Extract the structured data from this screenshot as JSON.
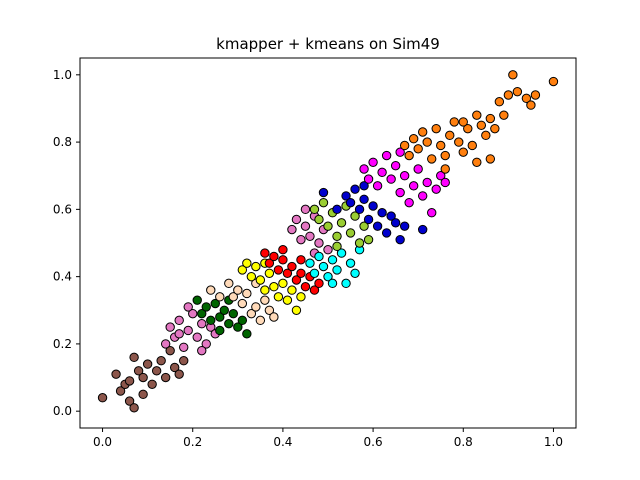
{
  "chart_data": {
    "type": "scatter",
    "title": "kmapper + kmeans on Sim49",
    "xlabel": "",
    "ylabel": "",
    "xlim": [
      -0.05,
      1.05
    ],
    "ylim": [
      -0.05,
      1.05
    ],
    "xticks": [
      0.0,
      0.2,
      0.4,
      0.6,
      0.8,
      1.0
    ],
    "yticks": [
      0.0,
      0.2,
      0.4,
      0.6,
      0.8,
      1.0
    ],
    "xtick_labels": [
      "0.0",
      "0.2",
      "0.4",
      "0.6",
      "0.8",
      "1.0"
    ],
    "ytick_labels": [
      "0.0",
      "0.2",
      "0.4",
      "0.6",
      "0.8",
      "1.0"
    ],
    "grid": false,
    "legend": "none",
    "marker_edge_color": "#000000",
    "series": [
      {
        "color": "#8c564b",
        "points": [
          [
            0.0,
            0.04
          ],
          [
            0.03,
            0.11
          ],
          [
            0.04,
            0.06
          ],
          [
            0.05,
            0.08
          ],
          [
            0.06,
            0.03
          ],
          [
            0.07,
            0.01
          ],
          [
            0.07,
            0.16
          ],
          [
            0.08,
            0.12
          ],
          [
            0.09,
            0.1
          ],
          [
            0.1,
            0.14
          ],
          [
            0.11,
            0.08
          ],
          [
            0.12,
            0.12
          ],
          [
            0.13,
            0.15
          ],
          [
            0.14,
            0.1
          ],
          [
            0.15,
            0.18
          ],
          [
            0.16,
            0.13
          ],
          [
            0.17,
            0.11
          ],
          [
            0.18,
            0.15
          ],
          [
            0.06,
            0.09
          ],
          [
            0.09,
            0.05
          ]
        ]
      },
      {
        "color": "#e377c2",
        "points": [
          [
            0.14,
            0.2
          ],
          [
            0.15,
            0.25
          ],
          [
            0.16,
            0.22
          ],
          [
            0.17,
            0.27
          ],
          [
            0.18,
            0.19
          ],
          [
            0.19,
            0.24
          ],
          [
            0.2,
            0.29
          ],
          [
            0.21,
            0.22
          ],
          [
            0.22,
            0.26
          ],
          [
            0.23,
            0.2
          ],
          [
            0.24,
            0.25
          ],
          [
            0.25,
            0.23
          ],
          [
            0.19,
            0.31
          ],
          [
            0.17,
            0.23
          ],
          [
            0.22,
            0.18
          ]
        ]
      },
      {
        "color": "#006400",
        "points": [
          [
            0.21,
            0.33
          ],
          [
            0.22,
            0.29
          ],
          [
            0.23,
            0.31
          ],
          [
            0.24,
            0.27
          ],
          [
            0.25,
            0.32
          ],
          [
            0.26,
            0.28
          ],
          [
            0.27,
            0.3
          ],
          [
            0.28,
            0.26
          ],
          [
            0.29,
            0.29
          ],
          [
            0.3,
            0.25
          ],
          [
            0.31,
            0.27
          ],
          [
            0.32,
            0.23
          ],
          [
            0.26,
            0.24
          ],
          [
            0.28,
            0.33
          ]
        ]
      },
      {
        "color": "#ffdab9",
        "points": [
          [
            0.24,
            0.36
          ],
          [
            0.26,
            0.34
          ],
          [
            0.28,
            0.38
          ],
          [
            0.29,
            0.34
          ],
          [
            0.3,
            0.36
          ],
          [
            0.31,
            0.32
          ],
          [
            0.32,
            0.35
          ],
          [
            0.33,
            0.29
          ],
          [
            0.34,
            0.31
          ],
          [
            0.35,
            0.27
          ],
          [
            0.36,
            0.33
          ],
          [
            0.37,
            0.3
          ],
          [
            0.38,
            0.28
          ],
          [
            0.34,
            0.38
          ]
        ]
      },
      {
        "color": "#ffff00",
        "points": [
          [
            0.31,
            0.42
          ],
          [
            0.32,
            0.44
          ],
          [
            0.33,
            0.4
          ],
          [
            0.34,
            0.43
          ],
          [
            0.35,
            0.39
          ],
          [
            0.36,
            0.36
          ],
          [
            0.37,
            0.41
          ],
          [
            0.38,
            0.37
          ],
          [
            0.39,
            0.34
          ],
          [
            0.4,
            0.38
          ],
          [
            0.41,
            0.33
          ],
          [
            0.42,
            0.36
          ],
          [
            0.43,
            0.3
          ],
          [
            0.44,
            0.34
          ],
          [
            0.36,
            0.44
          ]
        ]
      },
      {
        "color": "#ff0000",
        "points": [
          [
            0.36,
            0.47
          ],
          [
            0.37,
            0.44
          ],
          [
            0.38,
            0.46
          ],
          [
            0.39,
            0.42
          ],
          [
            0.4,
            0.45
          ],
          [
            0.41,
            0.41
          ],
          [
            0.42,
            0.43
          ],
          [
            0.43,
            0.39
          ],
          [
            0.44,
            0.41
          ],
          [
            0.45,
            0.37
          ],
          [
            0.46,
            0.4
          ],
          [
            0.47,
            0.36
          ],
          [
            0.48,
            0.38
          ],
          [
            0.4,
            0.48
          ],
          [
            0.44,
            0.45
          ]
        ]
      },
      {
        "color": "#e377c2",
        "points": [
          [
            0.42,
            0.54
          ],
          [
            0.43,
            0.57
          ],
          [
            0.44,
            0.51
          ],
          [
            0.45,
            0.55
          ],
          [
            0.46,
            0.52
          ],
          [
            0.47,
            0.58
          ],
          [
            0.48,
            0.5
          ],
          [
            0.49,
            0.54
          ],
          [
            0.5,
            0.48
          ],
          [
            0.45,
            0.6
          ],
          [
            0.47,
            0.47
          ]
        ]
      },
      {
        "color": "#00ffff",
        "points": [
          [
            0.46,
            0.44
          ],
          [
            0.47,
            0.41
          ],
          [
            0.48,
            0.46
          ],
          [
            0.49,
            0.43
          ],
          [
            0.5,
            0.4
          ],
          [
            0.51,
            0.45
          ],
          [
            0.52,
            0.42
          ],
          [
            0.53,
            0.47
          ],
          [
            0.54,
            0.38
          ],
          [
            0.55,
            0.44
          ],
          [
            0.56,
            0.41
          ],
          [
            0.57,
            0.48
          ],
          [
            0.51,
            0.38
          ]
        ]
      },
      {
        "color": "#9acd32",
        "points": [
          [
            0.47,
            0.6
          ],
          [
            0.48,
            0.57
          ],
          [
            0.49,
            0.62
          ],
          [
            0.5,
            0.55
          ],
          [
            0.51,
            0.59
          ],
          [
            0.52,
            0.52
          ],
          [
            0.53,
            0.56
          ],
          [
            0.54,
            0.61
          ],
          [
            0.55,
            0.53
          ],
          [
            0.56,
            0.58
          ],
          [
            0.57,
            0.5
          ],
          [
            0.58,
            0.55
          ],
          [
            0.59,
            0.51
          ],
          [
            0.52,
            0.49
          ]
        ]
      },
      {
        "color": "#0000cd",
        "points": [
          [
            0.49,
            0.65
          ],
          [
            0.52,
            0.6
          ],
          [
            0.54,
            0.64
          ],
          [
            0.55,
            0.62
          ],
          [
            0.56,
            0.66
          ],
          [
            0.57,
            0.6
          ],
          [
            0.58,
            0.63
          ],
          [
            0.59,
            0.57
          ],
          [
            0.6,
            0.61
          ],
          [
            0.61,
            0.55
          ],
          [
            0.62,
            0.59
          ],
          [
            0.63,
            0.53
          ],
          [
            0.64,
            0.58
          ],
          [
            0.65,
            0.56
          ],
          [
            0.66,
            0.51
          ],
          [
            0.67,
            0.55
          ],
          [
            0.71,
            0.54
          ],
          [
            0.58,
            0.67
          ]
        ]
      },
      {
        "color": "#ff00ff",
        "points": [
          [
            0.58,
            0.72
          ],
          [
            0.59,
            0.69
          ],
          [
            0.6,
            0.74
          ],
          [
            0.61,
            0.67
          ],
          [
            0.62,
            0.71
          ],
          [
            0.63,
            0.76
          ],
          [
            0.64,
            0.69
          ],
          [
            0.65,
            0.73
          ],
          [
            0.66,
            0.65
          ],
          [
            0.67,
            0.7
          ],
          [
            0.68,
            0.62
          ],
          [
            0.69,
            0.67
          ],
          [
            0.7,
            0.72
          ],
          [
            0.71,
            0.64
          ],
          [
            0.72,
            0.68
          ],
          [
            0.73,
            0.59
          ],
          [
            0.74,
            0.66
          ],
          [
            0.75,
            0.7
          ],
          [
            0.76,
            0.68
          ],
          [
            0.66,
            0.77
          ]
        ]
      },
      {
        "color": "#ff7f0e",
        "points": [
          [
            0.67,
            0.79
          ],
          [
            0.68,
            0.76
          ],
          [
            0.69,
            0.81
          ],
          [
            0.7,
            0.78
          ],
          [
            0.71,
            0.83
          ],
          [
            0.72,
            0.8
          ],
          [
            0.73,
            0.75
          ],
          [
            0.74,
            0.84
          ],
          [
            0.75,
            0.79
          ],
          [
            0.76,
            0.76
          ],
          [
            0.77,
            0.82
          ],
          [
            0.78,
            0.86
          ],
          [
            0.79,
            0.8
          ],
          [
            0.8,
            0.77
          ],
          [
            0.81,
            0.84
          ],
          [
            0.82,
            0.79
          ],
          [
            0.83,
            0.88
          ],
          [
            0.84,
            0.85
          ],
          [
            0.85,
            0.82
          ],
          [
            0.86,
            0.87
          ],
          [
            0.87,
            0.84
          ],
          [
            0.88,
            0.92
          ],
          [
            0.89,
            0.88
          ],
          [
            0.9,
            0.94
          ],
          [
            0.91,
            1.0
          ],
          [
            0.92,
            0.95
          ],
          [
            0.94,
            0.93
          ],
          [
            0.95,
            0.91
          ],
          [
            0.96,
            0.94
          ],
          [
            1.0,
            0.98
          ],
          [
            0.83,
            0.74
          ],
          [
            0.86,
            0.75
          ],
          [
            0.8,
            0.86
          ],
          [
            0.76,
            0.72
          ]
        ]
      }
    ]
  }
}
